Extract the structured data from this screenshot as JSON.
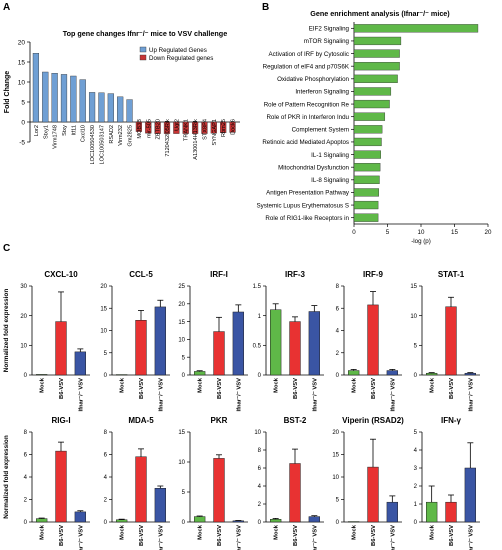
{
  "panels": {
    "A": {
      "letter": "A",
      "title": "Top gene changes Ifnr⁻/⁻ mice to VSV challenge",
      "ylabel": "Fold Change",
      "legend": [
        "Up Regulated Genes",
        "Down Regulated genes"
      ],
      "colors": {
        "up": "#6f9fd4",
        "down": "#c73434"
      }
    },
    "B": {
      "letter": "B",
      "title": "Gene enrichment analysis (Ifnar⁻/⁻ mice)",
      "xlabel": "-log (p)",
      "bar_color": "#5fb848"
    },
    "C": {
      "letter": "C",
      "ylabel": "Normalized fold expression",
      "group_colors": {
        "Mock": "#5fb848",
        "B6-VSV": "#e83232",
        "Ifnar⁻/⁻ VSV": "#3a55a4"
      }
    }
  },
  "chart_data": [
    {
      "type": "bar",
      "panel": "A",
      "title": "Top gene changes Ifnr⁻/⁻ mice to VSV challenge",
      "ylabel": "Fold Change",
      "ylim": [
        -5,
        20
      ],
      "yticks": [
        -5,
        0,
        5,
        10,
        15,
        20
      ],
      "series": [
        {
          "name": "Up Regulated Genes",
          "categories": [
            "Lor2",
            "Stxy1",
            "Virm1748",
            "Stxy",
            "Itf11",
            "Cxcl10",
            "LOC100504530",
            "LOC100503147",
            "RSAD2",
            "Virm232",
            "Gm2825"
          ],
          "values": [
            17.2,
            12.5,
            12.2,
            11.9,
            11.5,
            10.6,
            7.4,
            7.3,
            7.1,
            6.3,
            5.6
          ]
        },
        {
          "name": "Down Regulated genes",
          "categories": [
            "MOB3B",
            "mir-505",
            "ZBTB20",
            "7120432I05Rik",
            "Ugt2",
            "TRANK1",
            "A130014H13Rik",
            "STX8P4",
            "SYNGAP1",
            "Rbm25",
            "Dock6"
          ],
          "values": [
            -2.4,
            -2.8,
            -2.9,
            -2.9,
            -2.9,
            -2.9,
            -2.9,
            -2.9,
            -2.8,
            -2.7,
            -2.6
          ]
        }
      ]
    },
    {
      "type": "bar",
      "panel": "B",
      "orientation": "horizontal",
      "title": "Gene enrichment analysis (Ifnar⁻/⁻ mice)",
      "xlabel": "-log (p)",
      "xlim": [
        0,
        20
      ],
      "xticks": [
        0,
        5,
        10,
        15,
        20
      ],
      "categories": [
        "EIF2 Signaling",
        "mTOR Signaling",
        "Activation of IRF by Cytosolic",
        "Regulation of eIF4 and p70S6K",
        "Oxidative Phosphorylation",
        "Interferon Signaling",
        "Role of Pattern Recognition Re",
        "Role of PKR in Interferon Indu",
        "Complement System",
        "Retinoic acid Mediated Apoptos",
        "IL-1 Signaling",
        "Mitochondrial Dysfunction",
        "IL-8 Signaling",
        "Antigen Presentation Pathway",
        "Systemic Lupus Erythematosus S",
        "Role of RIG1-like Receptors in"
      ],
      "values": [
        18.5,
        7.0,
        6.8,
        6.8,
        6.5,
        5.5,
        5.3,
        4.6,
        4.2,
        4.1,
        4.0,
        3.9,
        3.8,
        3.7,
        3.6,
        3.6
      ]
    },
    {
      "type": "bar",
      "panel": "C",
      "ylabel": "Normalized fold expression",
      "categories": [
        "Mock",
        "B6-VSV",
        "Ifnar⁻/⁻ VSV"
      ],
      "subplots": [
        {
          "title": "CXCL-10",
          "ylim": [
            0,
            30
          ],
          "yticks": [
            0,
            10,
            20,
            30
          ],
          "values": [
            0.2,
            18.0,
            7.8
          ],
          "errors": [
            0,
            10.0,
            1.0
          ]
        },
        {
          "title": "CCL-5",
          "ylim": [
            0,
            20
          ],
          "yticks": [
            0,
            5,
            10,
            15,
            20
          ],
          "values": [
            0.1,
            12.3,
            15.3
          ],
          "errors": [
            0,
            2.2,
            1.5
          ]
        },
        {
          "title": "IRF-I",
          "ylim": [
            0,
            25
          ],
          "yticks": [
            0,
            5,
            10,
            15,
            20,
            25
          ],
          "values": [
            1.0,
            12.2,
            17.7
          ],
          "errors": [
            0.2,
            4.0,
            2.0
          ]
        },
        {
          "title": "IRF-3",
          "ylim": [
            0,
            1.5
          ],
          "yticks": [
            0.0,
            0.5,
            1.0,
            1.5
          ],
          "values": [
            1.1,
            0.9,
            1.07
          ],
          "errors": [
            0.1,
            0.08,
            0.1
          ]
        },
        {
          "title": "IRF-9",
          "ylim": [
            0,
            8
          ],
          "yticks": [
            0,
            2,
            4,
            6,
            8
          ],
          "values": [
            0.4,
            6.3,
            0.4
          ],
          "errors": [
            0.1,
            1.2,
            0.1
          ]
        },
        {
          "title": "STAT-1",
          "ylim": [
            0,
            15
          ],
          "yticks": [
            0,
            5,
            10,
            15
          ],
          "values": [
            0.3,
            11.5,
            0.3
          ],
          "errors": [
            0.1,
            1.6,
            0.1
          ]
        },
        {
          "title": "RIG-I",
          "ylim": [
            0,
            8
          ],
          "yticks": [
            0,
            2,
            4,
            6,
            8
          ],
          "values": [
            0.3,
            6.3,
            0.9
          ],
          "errors": [
            0.05,
            0.8,
            0.1
          ]
        },
        {
          "title": "MDA-5",
          "ylim": [
            0,
            8
          ],
          "yticks": [
            0,
            2,
            4,
            6,
            8
          ],
          "values": [
            0.2,
            5.8,
            3.0
          ],
          "errors": [
            0.05,
            0.7,
            0.2
          ]
        },
        {
          "title": "PKR",
          "ylim": [
            0,
            15
          ],
          "yticks": [
            0,
            5,
            10,
            15
          ],
          "values": [
            0.9,
            10.6,
            0.2
          ],
          "errors": [
            0.1,
            0.6,
            0.05
          ]
        },
        {
          "title": "BST-2",
          "ylim": [
            0,
            10
          ],
          "yticks": [
            0,
            2,
            4,
            6,
            8,
            10
          ],
          "values": [
            0.3,
            6.5,
            0.6
          ],
          "errors": [
            0.1,
            1.6,
            0.1
          ]
        },
        {
          "title": "Viperin (RSAD2)",
          "ylim": [
            0,
            20
          ],
          "yticks": [
            0,
            5,
            10,
            15,
            20
          ],
          "values": [
            0.1,
            12.2,
            4.4
          ],
          "errors": [
            0,
            6.2,
            1.4
          ]
        },
        {
          "title": "IFN-γ",
          "ylim": [
            0,
            5
          ],
          "yticks": [
            0,
            1,
            2,
            3,
            4,
            5
          ],
          "values": [
            1.1,
            1.1,
            3.0
          ],
          "errors": [
            0.9,
            0.4,
            1.4
          ]
        }
      ]
    }
  ]
}
